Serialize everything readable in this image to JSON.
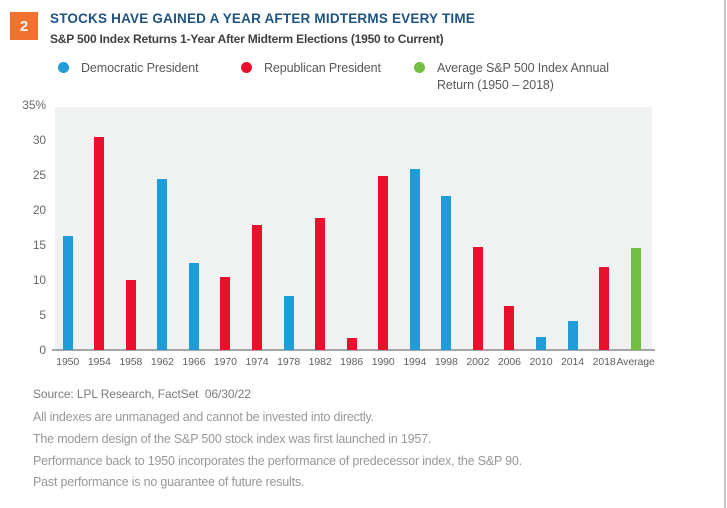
{
  "page": {
    "badge": "2",
    "title": "STOCKS HAVE GAINED A YEAR AFTER MIDTERMS EVERY TIME",
    "subtitle": "S&P 500 Index Returns 1-Year After Midterm Elections (1950 to Current)"
  },
  "legend": [
    {
      "name": "democratic-president",
      "label": "Democratic President",
      "color": "#209cd8"
    },
    {
      "name": "republican-president",
      "label": "Republican President",
      "color": "#e8112d"
    },
    {
      "name": "average-return",
      "label": "Average S&P 500 Index Annual Return (1950 – 2018)",
      "color": "#72bf44"
    }
  ],
  "chart_data": {
    "type": "bar",
    "title": "S&P 500 Index Returns 1-Year After Midterm Elections (1950 to Current)",
    "categories": [
      "1950",
      "1954",
      "1958",
      "1962",
      "1966",
      "1970",
      "1974",
      "1978",
      "1982",
      "1986",
      "1990",
      "1994",
      "1998",
      "2002",
      "2006",
      "2010",
      "2014",
      "2018",
      "Average"
    ],
    "values": [
      16.3,
      30.4,
      10.0,
      24.4,
      12.4,
      10.4,
      17.8,
      7.7,
      18.8,
      1.7,
      24.8,
      25.9,
      22.0,
      14.7,
      6.3,
      1.9,
      4.2,
      11.9,
      14.5
    ],
    "party": [
      "D",
      "R",
      "R",
      "D",
      "D",
      "R",
      "R",
      "D",
      "R",
      "R",
      "R",
      "D",
      "D",
      "R",
      "R",
      "D",
      "D",
      "R",
      "A"
    ],
    "colors": {
      "D": "#209cd8",
      "R": "#e8112d",
      "A": "#72bf44"
    },
    "xlabel": "",
    "ylabel": "",
    "ylim": [
      0,
      35
    ],
    "yticks": [
      0,
      5,
      10,
      15,
      20,
      25,
      30,
      35
    ],
    "ytick_labels": [
      "0",
      "5",
      "10",
      "15",
      "20",
      "25",
      "30",
      "35%"
    ],
    "grid": false,
    "plot_bg": "#f0f1f1",
    "legend_position": "top"
  },
  "footer": {
    "source": "Source: LPL Research, FactSet  06/30/22",
    "disclaimers": [
      "All indexes are unmanaged and cannot be invested into directly.",
      "The modern design of the S&P 500 stock index was first launched in 1957.",
      "Performance back to 1950 incorporates the performance of predecessor index, the S&P 90.",
      "Past performance is no guarantee of future results."
    ]
  },
  "accent_colors": {
    "badge_orange": "#f0722e",
    "title_navy": "#1e5384"
  }
}
